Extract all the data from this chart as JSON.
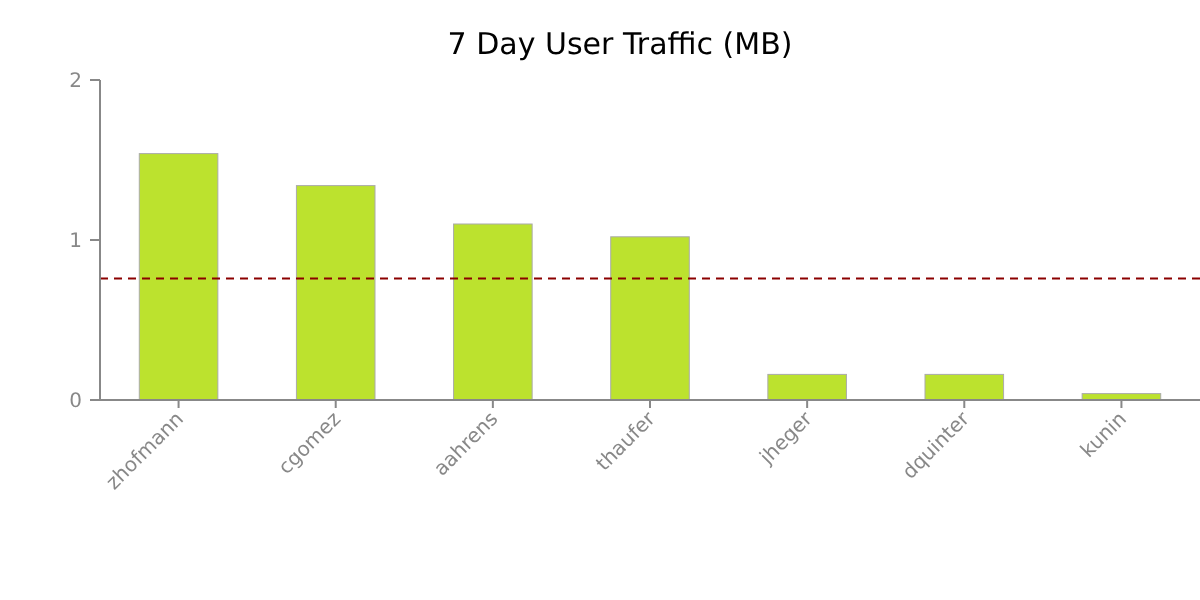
{
  "chart_data": {
    "type": "bar",
    "title": "7 Day User Traffic (MB)",
    "categories": [
      "zhofmann",
      "cgomez",
      "aahrens",
      "thaufer",
      "jheger",
      "dquinter",
      "kunin"
    ],
    "values": [
      1.54,
      1.34,
      1.1,
      1.02,
      0.16,
      0.16,
      0.04
    ],
    "color": "#bce22e",
    "ylim": [
      0,
      2
    ],
    "yticks": [
      0,
      1,
      2
    ],
    "grid": false,
    "ref_lines": [
      {
        "axis": "y",
        "value": 0.76,
        "color": "#8b0000",
        "line_style": "dashed"
      }
    ]
  }
}
